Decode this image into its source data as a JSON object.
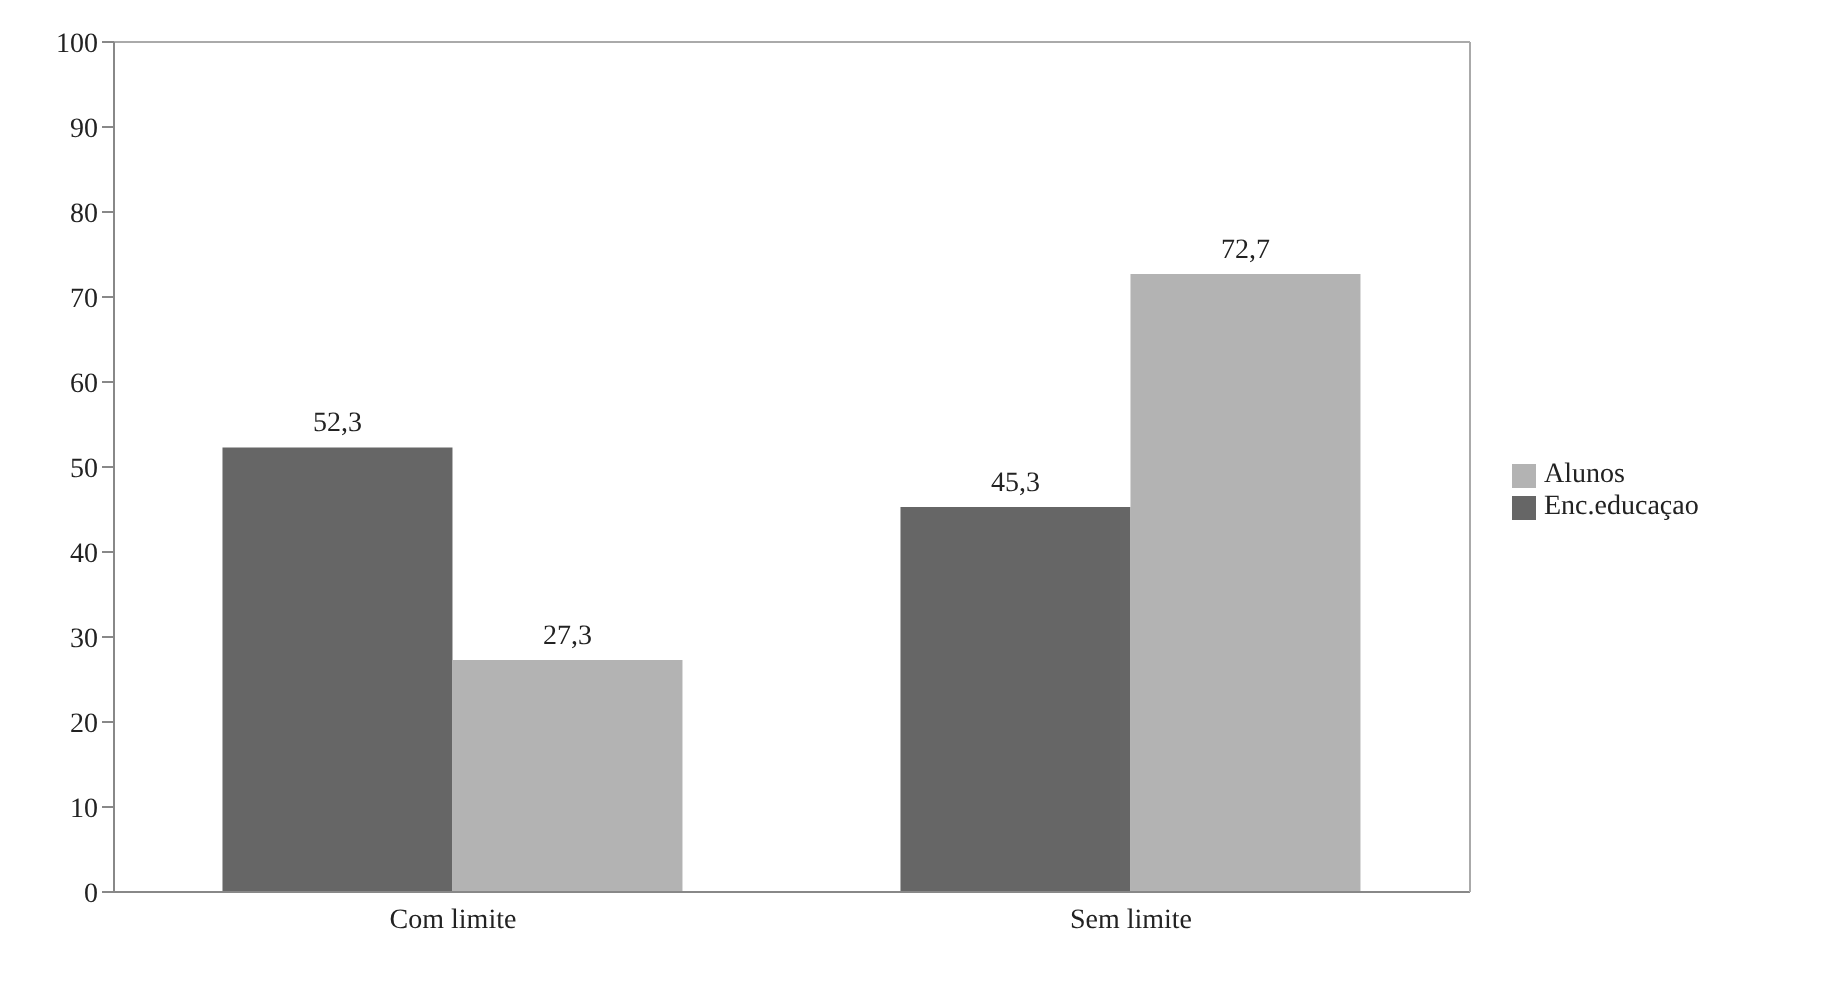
{
  "chart_data": {
    "type": "bar",
    "categories": [
      "Com limite",
      "Sem limite"
    ],
    "series": [
      {
        "name": "Enc.educaçao",
        "color": "#666666",
        "values": [
          52.3,
          45.3
        ],
        "value_labels": [
          "52,3",
          "45,3"
        ]
      },
      {
        "name": "Alunos",
        "color": "#b3b3b3",
        "values": [
          27.3,
          72.7
        ],
        "value_labels": [
          "27,3",
          "72,7"
        ]
      }
    ],
    "ylim": [
      0,
      100
    ],
    "yticks": [
      0,
      10,
      20,
      30,
      40,
      50,
      60,
      70,
      80,
      90,
      100
    ],
    "grid": false,
    "legend": "right"
  }
}
